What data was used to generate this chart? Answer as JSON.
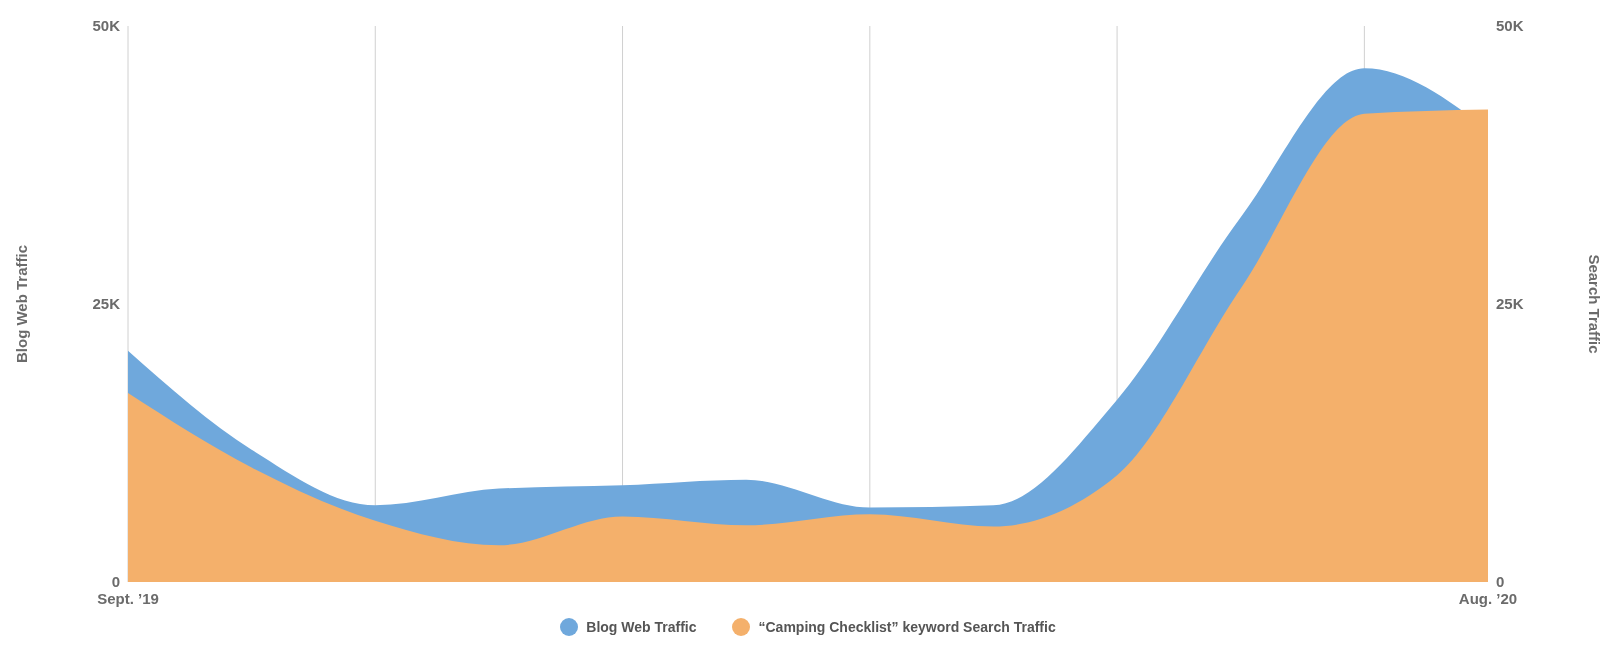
{
  "chart_data": {
    "type": "area",
    "ylabel": "Blog Web Traffic",
    "y2label": "Search Traffic",
    "categories": [
      "Sept. ’19",
      null,
      null,
      null,
      null,
      null,
      null,
      null,
      null,
      null,
      null,
      "Aug. ’20"
    ],
    "series": [
      {
        "name": "Blog Web Traffic",
        "color": "#6fa8dc",
        "values": [
          20.8,
          11.9,
          6.9,
          8.4,
          8.7,
          9.2,
          6.7,
          6.9,
          16.4,
          32.8,
          46.2,
          40.7
        ]
      },
      {
        "name": "“Camping Checklist” keyword Search Traffic",
        "color": "#f4b06b",
        "axis": "y2",
        "values": [
          17,
          10.3,
          5.5,
          3.3,
          5.9,
          5.1,
          6.1,
          5,
          9.6,
          26.4,
          42.1,
          42.5
        ]
      }
    ],
    "ylim": [
      0,
      50
    ],
    "yticks": [
      {
        "value": 0,
        "label": "0"
      },
      {
        "value": 25,
        "label": "25K"
      },
      {
        "value": 50,
        "label": "50K"
      }
    ],
    "y2lim": [
      0,
      50
    ],
    "y2ticks": [
      {
        "value": 0,
        "label": "0"
      },
      {
        "value": 25,
        "label": "25K"
      },
      {
        "value": 50,
        "label": "50K"
      }
    ],
    "grid": "x",
    "legend": "bottom"
  }
}
